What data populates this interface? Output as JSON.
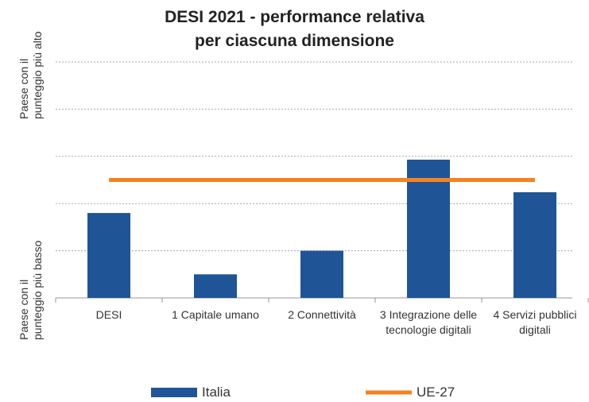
{
  "chart_data": {
    "type": "bar",
    "title": [
      "DESI 2021 - performance relativa",
      "per ciascuna dimensione"
    ],
    "y_top_label": "Paese con il punteggio più alto",
    "y_bottom_label": "Paese con il punteggio più basso",
    "categories": [
      "DESI",
      "1 Capitale umano",
      "2 Connettività",
      "3 Integrazione delle tecnologie digitali",
      "4 Servizi pubblici digitali"
    ],
    "series": [
      {
        "name": "Italia",
        "type": "bar",
        "color": "#1f5597",
        "values": [
          1.8,
          0.5,
          1.0,
          2.93,
          2.24
        ]
      },
      {
        "name": "UE-27",
        "type": "line",
        "color": "#f5821f",
        "values": [
          2.5,
          2.5,
          2.5,
          2.5,
          2.5
        ]
      }
    ],
    "ylim": [
      0,
      5
    ],
    "yticks": [
      0,
      1,
      2,
      3,
      4,
      5
    ],
    "grid": true,
    "legend": "bottom"
  }
}
